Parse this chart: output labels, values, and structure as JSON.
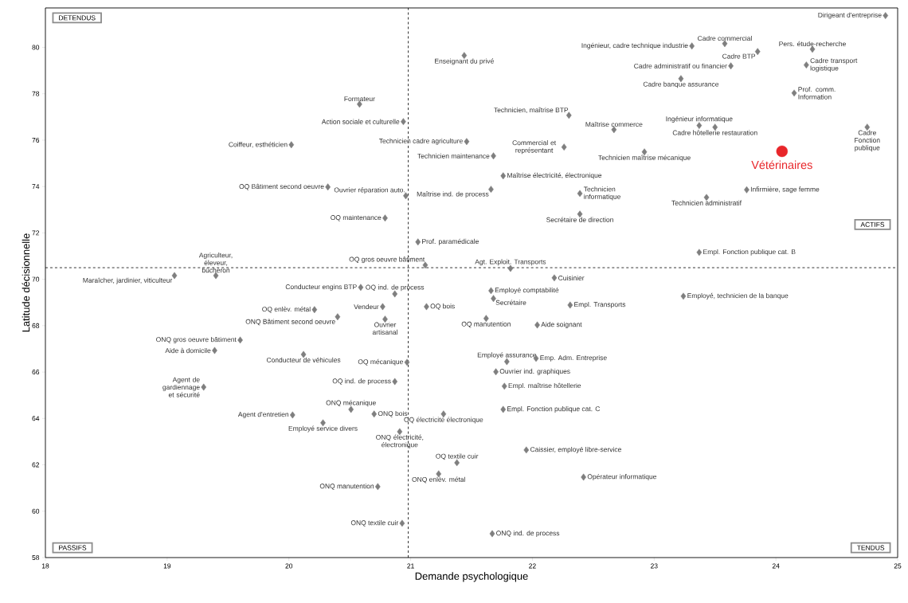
{
  "chart_data": {
    "type": "scatter",
    "xlabel": "Demande psychologique",
    "ylabel": "Latitude décisionnelle",
    "xlim": [
      18,
      25
    ],
    "ylim": [
      58,
      81.7
    ],
    "xticks": [
      18,
      19,
      20,
      21,
      22,
      23,
      24,
      25
    ],
    "yticks": [
      58,
      60,
      62,
      64,
      66,
      68,
      70,
      72,
      74,
      76,
      78,
      80
    ],
    "series": [
      {
        "color": "#7f7f7f",
        "marker": "diamond",
        "x": [
          24.9,
          23.58,
          23.31,
          23.85,
          24.3,
          21.44,
          23.63,
          24.25,
          23.22,
          24.15,
          22.3,
          23.37,
          23.5,
          22.67,
          24.75,
          21.46,
          22.26,
          22.92,
          21.68,
          21.76,
          23.76,
          21.66,
          22.39,
          23.43,
          22.39,
          20.58,
          20.94,
          20.02,
          20.32,
          20.96,
          20.79,
          21.06,
          21.12,
          21.82,
          19.06,
          19.4,
          20.59,
          20.87,
          20.77,
          20.21,
          20.4,
          20.79,
          21.13,
          22.18,
          21.66,
          21.68,
          22.31,
          23.24,
          23.37,
          21.62,
          22.04,
          19.6,
          19.39,
          20.12,
          20.97,
          21.79,
          22.03,
          21.7,
          21.77,
          20.87,
          19.3,
          20.51,
          20.03,
          20.7,
          20.28,
          20.91,
          21.76,
          21.27,
          21.95,
          21.38,
          21.23,
          22.42,
          20.73,
          20.93,
          21.67
        ],
        "values": [
          81.37,
          80.16,
          80.06,
          79.82,
          79.92,
          79.65,
          79.2,
          79.24,
          78.65,
          78.03,
          77.07,
          76.63,
          76.56,
          76.45,
          76.56,
          75.94,
          75.7,
          75.49,
          75.32,
          74.46,
          73.86,
          73.88,
          73.7,
          73.53,
          72.81,
          77.55,
          76.8,
          75.8,
          73.98,
          73.6,
          72.64,
          71.61,
          70.61,
          70.47,
          70.16,
          70.16,
          69.65,
          69.37,
          68.82,
          68.69,
          68.38,
          68.28,
          68.82,
          70.06,
          69.51,
          69.17,
          68.89,
          69.27,
          71.16,
          68.31,
          68.03,
          67.38,
          66.93,
          66.76,
          66.42,
          66.45,
          66.59,
          66.01,
          65.39,
          65.59,
          65.35,
          64.39,
          64.15,
          64.19,
          63.81,
          63.43,
          64.39,
          64.19,
          62.64,
          62.09,
          61.61,
          61.47,
          61.06,
          59.48,
          59.03
        ]
      },
      {
        "name": "Vétérinaires",
        "color": "#e8262a",
        "marker": "circle",
        "x": [
          24.05
        ],
        "values": [
          75.52
        ]
      }
    ],
    "ref_lines": [
      {
        "axis": "x",
        "value": 20.98,
        "line_style": "dashed"
      },
      {
        "axis": "y",
        "value": 70.5,
        "line_style": "dashed"
      }
    ],
    "annotations": [
      {
        "text": "Dirigeant d'entreprise",
        "x": 24.9,
        "y": 81.37
      },
      {
        "text": "Cadre commercial",
        "x": 23.58,
        "y": 80.16
      },
      {
        "text": "Ingénieur, cadre technique industrie",
        "x": 23.31,
        "y": 80.06
      },
      {
        "text": "Cadre BTP",
        "x": 23.85,
        "y": 79.82
      },
      {
        "text": "Pers. étude-recherche",
        "x": 24.3,
        "y": 79.92
      },
      {
        "text": "Enseignant du privé",
        "x": 21.44,
        "y": 79.65
      },
      {
        "text": "Cadre administratif ou financier",
        "x": 23.63,
        "y": 79.2
      },
      {
        "text": "Cadre transport logistique",
        "x": 24.25,
        "y": 79.24
      },
      {
        "text": "Cadre banque assurance",
        "x": 23.22,
        "y": 78.65
      },
      {
        "text": "Prof. comm. Information",
        "x": 24.15,
        "y": 78.03
      },
      {
        "text": "Technicien, maîtrise BTP",
        "x": 22.3,
        "y": 77.07
      },
      {
        "text": "Ingénieur informatique",
        "x": 23.37,
        "y": 76.63
      },
      {
        "text": "Cadre hôtellerie restauration",
        "x": 23.5,
        "y": 76.56
      },
      {
        "text": "Maîtrise commerce",
        "x": 22.67,
        "y": 76.45
      },
      {
        "text": "Cadre Fonction publique",
        "x": 24.75,
        "y": 76.56
      },
      {
        "text": "Technicien cadre agriculture",
        "x": 21.46,
        "y": 75.94
      },
      {
        "text": "Commercial et représentant",
        "x": 22.26,
        "y": 75.7
      },
      {
        "text": "Technicien maîtrise mécanique",
        "x": 22.92,
        "y": 75.49
      },
      {
        "text": "Technicien maintenance",
        "x": 21.68,
        "y": 75.32
      },
      {
        "text": "Maîtrise électricité, électronique",
        "x": 21.76,
        "y": 74.46
      },
      {
        "text": "Infirmière, sage femme",
        "x": 23.76,
        "y": 73.86
      },
      {
        "text": "Maîtrise ind. de process",
        "x": 21.66,
        "y": 73.88
      },
      {
        "text": "Technicien informatique",
        "x": 22.39,
        "y": 73.7
      },
      {
        "text": "Technicien administratif",
        "x": 23.43,
        "y": 73.53
      },
      {
        "text": "Secrétaire de direction",
        "x": 22.39,
        "y": 72.81
      },
      {
        "text": "Formateur",
        "x": 20.58,
        "y": 77.55
      },
      {
        "text": "Action sociale et culturelle",
        "x": 20.94,
        "y": 76.8
      },
      {
        "text": "Coiffeur, esthéticien",
        "x": 20.02,
        "y": 75.8
      },
      {
        "text": "OQ Bâtiment second oeuvre",
        "x": 20.32,
        "y": 73.98
      },
      {
        "text": "Ouvrier réparation auto.",
        "x": 20.96,
        "y": 73.6
      },
      {
        "text": "OQ maintenance",
        "x": 20.79,
        "y": 72.64
      },
      {
        "text": "Prof. paramédicale",
        "x": 21.06,
        "y": 71.61
      },
      {
        "text": "OQ gros oeuvre bâtiment",
        "x": 21.12,
        "y": 70.61
      },
      {
        "text": "Agt. Exploit. Transports",
        "x": 21.82,
        "y": 70.47
      },
      {
        "text": "Maraîcher, jardinier, viticulteur",
        "x": 19.06,
        "y": 70.16
      },
      {
        "text": "Agriculteur, éleveur, bûcheron",
        "x": 19.4,
        "y": 70.16
      },
      {
        "text": "Conducteur engins BTP",
        "x": 20.59,
        "y": 69.65
      },
      {
        "text": "OQ ind. de process",
        "x": 20.87,
        "y": 69.37
      },
      {
        "text": "Vendeur",
        "x": 20.77,
        "y": 68.82
      },
      {
        "text": "OQ enlèv. métal",
        "x": 20.21,
        "y": 68.69
      },
      {
        "text": "ONQ Bâtiment second oeuvre",
        "x": 20.4,
        "y": 68.38
      },
      {
        "text": "Ouvrier artisanal",
        "x": 20.79,
        "y": 68.28
      },
      {
        "text": "OQ bois",
        "x": 21.13,
        "y": 68.82
      },
      {
        "text": "Cuisinier",
        "x": 22.18,
        "y": 70.06
      },
      {
        "text": "Employé comptabilité",
        "x": 21.66,
        "y": 69.51
      },
      {
        "text": "Secrétaire",
        "x": 21.68,
        "y": 69.17
      },
      {
        "text": "Empl. Transports",
        "x": 22.31,
        "y": 68.89
      },
      {
        "text": "Employé, technicien de la banque",
        "x": 23.24,
        "y": 69.27
      },
      {
        "text": "Empl. Fonction publique cat. B",
        "x": 23.37,
        "y": 71.16
      },
      {
        "text": "OQ manutention",
        "x": 21.62,
        "y": 68.31
      },
      {
        "text": "Aide soignant",
        "x": 22.04,
        "y": 68.03
      },
      {
        "text": "ONQ gros oeuvre bâtiment",
        "x": 19.6,
        "y": 67.38
      },
      {
        "text": "Aide à domicile",
        "x": 19.39,
        "y": 66.93
      },
      {
        "text": "Conducteur de véhicules",
        "x": 20.12,
        "y": 66.76
      },
      {
        "text": "OQ mécanique",
        "x": 20.97,
        "y": 66.42
      },
      {
        "text": "Employé assurance",
        "x": 21.79,
        "y": 66.45
      },
      {
        "text": "Emp. Adm. Entreprise",
        "x": 22.03,
        "y": 66.59
      },
      {
        "text": "Ouvrier ind. graphiques",
        "x": 21.7,
        "y": 66.01
      },
      {
        "text": "Empl. maîtrise hôtellerie",
        "x": 21.77,
        "y": 65.39
      },
      {
        "text": "OQ ind. de process",
        "x": 20.87,
        "y": 65.59
      },
      {
        "text": "Agent de gardiennage et sécurité",
        "x": 19.3,
        "y": 65.35
      },
      {
        "text": "ONQ mécanique",
        "x": 20.51,
        "y": 64.39
      },
      {
        "text": "Agent d'entretien",
        "x": 20.03,
        "y": 64.15
      },
      {
        "text": "ONQ bois",
        "x": 20.7,
        "y": 64.19
      },
      {
        "text": "Employé service divers",
        "x": 20.28,
        "y": 63.81
      },
      {
        "text": "ONQ électricité, électronique",
        "x": 20.91,
        "y": 63.43
      },
      {
        "text": "Empl. Fonction publique cat. C",
        "x": 21.76,
        "y": 64.39
      },
      {
        "text": "OQ électricité électronique",
        "x": 21.27,
        "y": 64.19
      },
      {
        "text": "Caissier, employé libre-service",
        "x": 21.95,
        "y": 62.64
      },
      {
        "text": "OQ textile cuir",
        "x": 21.38,
        "y": 62.09
      },
      {
        "text": "ONQ enlèv. métal",
        "x": 21.23,
        "y": 61.61
      },
      {
        "text": "Opérateur informatique",
        "x": 22.42,
        "y": 61.47
      },
      {
        "text": "ONQ manutention",
        "x": 20.73,
        "y": 61.06
      },
      {
        "text": "ONQ textile cuir",
        "x": 20.93,
        "y": 59.48
      },
      {
        "text": "ONQ ind. de process",
        "x": 21.67,
        "y": 59.03
      },
      "DETENDUS",
      "ACTIFS",
      "PASSIFS",
      "TENDUS"
    ]
  }
}
